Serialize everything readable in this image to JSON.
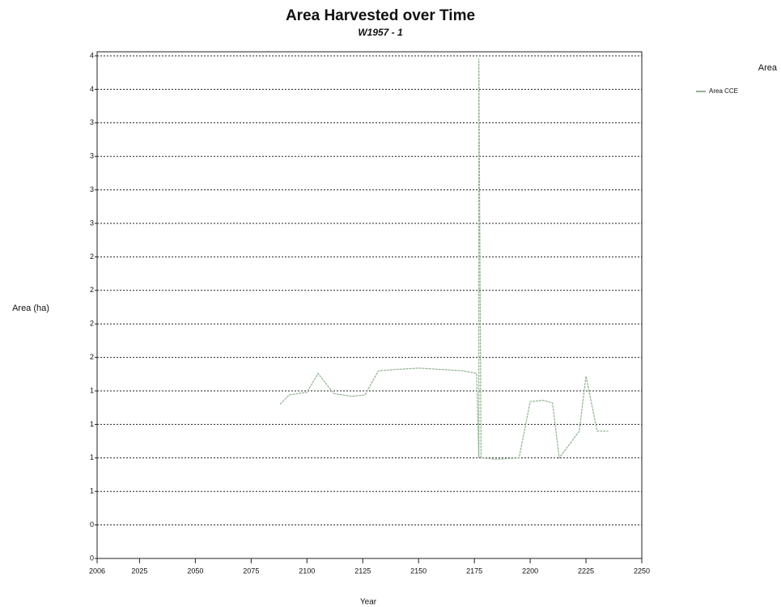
{
  "chart_data": {
    "type": "line",
    "title": "Area Harvested over Time",
    "subtitle": "W1957 - 1",
    "x_label": "Year",
    "y_label": "Area (ha)",
    "legend_title": "Area",
    "x": [
      2088,
      2092,
      2100,
      2105,
      2112,
      2120,
      2126,
      2132,
      2140,
      2150,
      2160,
      2170,
      2176,
      2177,
      2177,
      2178,
      2185,
      2195,
      2200,
      2206,
      2210,
      2213,
      2218,
      2222,
      2225,
      2230,
      2235
    ],
    "series": [
      {
        "name": "Area CCE",
        "color": "#8fb38f",
        "values": [
          1.15,
          1.22,
          1.24,
          1.38,
          1.23,
          1.21,
          1.22,
          1.4,
          1.41,
          1.42,
          1.41,
          1.4,
          1.38,
          0.75,
          3.73,
          0.75,
          0.74,
          0.75,
          1.17,
          1.18,
          1.16,
          0.75,
          0.86,
          0.95,
          1.36,
          0.95,
          0.95
        ]
      }
    ],
    "xlim": [
      2006,
      2250
    ],
    "xticks": [
      2006,
      2025,
      2050,
      2075,
      2100,
      2125,
      2150,
      2175,
      2200,
      2225,
      2250
    ],
    "ylim": [
      0,
      3.75
    ],
    "yticks": [
      {
        "value": 0,
        "label": "0"
      },
      {
        "value": 0.25,
        "label": "0"
      },
      {
        "value": 0.5,
        "label": "1"
      },
      {
        "value": 0.75,
        "label": "1"
      },
      {
        "value": 1,
        "label": "1"
      },
      {
        "value": 1.25,
        "label": "1"
      },
      {
        "value": 1.5,
        "label": "2"
      },
      {
        "value": 1.75,
        "label": "2"
      },
      {
        "value": 2,
        "label": "2"
      },
      {
        "value": 2.25,
        "label": "2"
      },
      {
        "value": 2.5,
        "label": "3"
      },
      {
        "value": 2.75,
        "label": "3"
      },
      {
        "value": 3,
        "label": "3"
      },
      {
        "value": 3.25,
        "label": "3"
      },
      {
        "value": 3.5,
        "label": "4"
      },
      {
        "value": 3.75,
        "label": "4"
      }
    ],
    "grid": true
  }
}
